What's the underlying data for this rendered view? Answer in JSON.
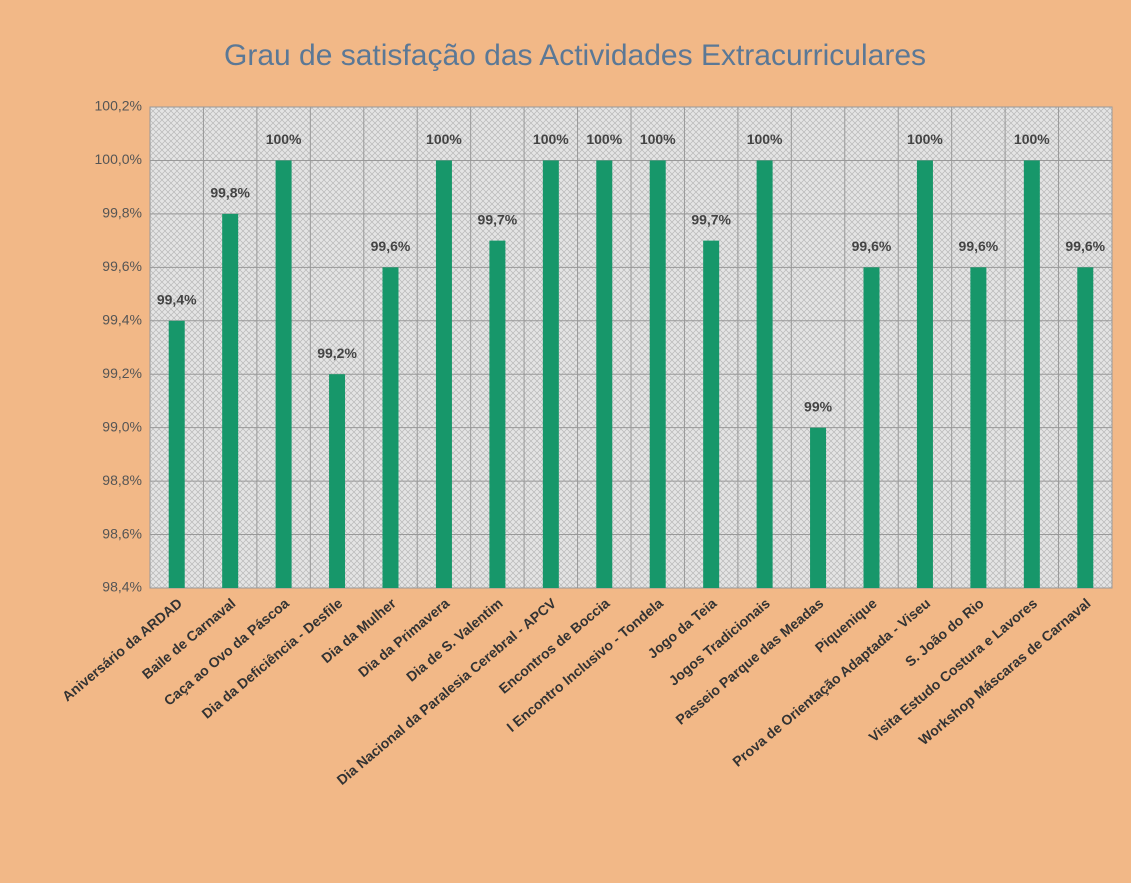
{
  "chart_data": {
    "type": "bar",
    "title": "Grau de satisfação das Actividades Extracurriculares",
    "categories": [
      "Aniversário da ARDAD",
      "Baile de Carnaval",
      "Caça ao Ovo da Páscoa",
      "Dia da Deficiência - Desfile",
      "Dia da Mulher",
      "Dia da Primavera",
      "Dia de S. Valentim",
      "Dia Nacional da Paralesia Cerebral - APCV",
      "Encontros de Boccia",
      "I Encontro Inclusivo - Tondela",
      "Jogo da Teia",
      "Jogos Tradicionais",
      "Passeio Parque das Meadas",
      "Piquenique",
      "Prova de Orientação Adaptada - Viseu",
      "S. João do Rio",
      "Visita Estudo Costura e Lavores",
      "Workshop Máscaras de Carnaval"
    ],
    "values": [
      99.4,
      99.8,
      100,
      99.2,
      99.6,
      100,
      99.7,
      100,
      100,
      100,
      99.7,
      100,
      99,
      99.6,
      100,
      99.6,
      100,
      99.6
    ],
    "value_labels": [
      "99,4%",
      "99,8%",
      "100%",
      "99,2%",
      "99,6%",
      "100%",
      "99,7%",
      "100%",
      "100%",
      "100%",
      "99,7%",
      "100%",
      "99%",
      "99,6%",
      "100%",
      "99,6%",
      "100%",
      "99,6%"
    ],
    "color": "#17976a",
    "ylim": [
      98.4,
      100.2
    ],
    "yticks": [
      {
        "value": 98.4,
        "label": "98,4%"
      },
      {
        "value": 98.6,
        "label": "98,6%"
      },
      {
        "value": 98.8,
        "label": "98,8%"
      },
      {
        "value": 99.0,
        "label": "99,0%"
      },
      {
        "value": 99.2,
        "label": "99,2%"
      },
      {
        "value": 99.4,
        "label": "99,4%"
      },
      {
        "value": 99.6,
        "label": "99,6%"
      },
      {
        "value": 99.8,
        "label": "99,8%"
      },
      {
        "value": 100.0,
        "label": "100,0%"
      },
      {
        "value": 100.2,
        "label": "100,2%"
      }
    ],
    "grid": true
  }
}
